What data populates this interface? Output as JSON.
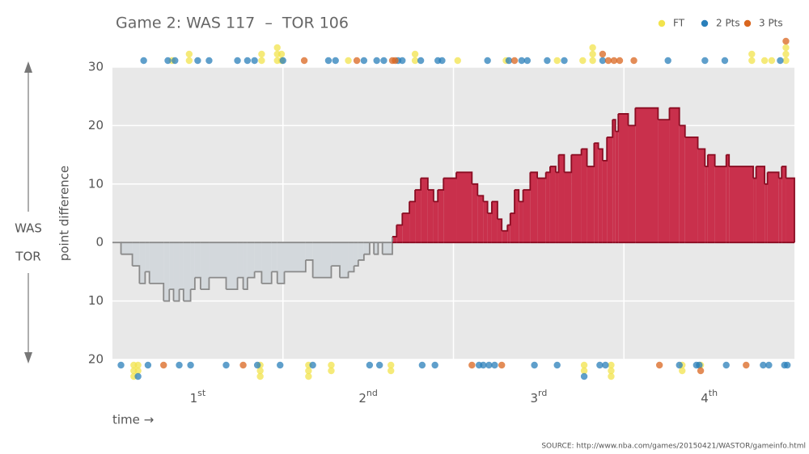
{
  "chart_data": {
    "type": "step-area",
    "title": "Game 2: WAS 117  –  TOR 106",
    "y_label": "point difference",
    "x_label": "time →",
    "top_team": "WAS",
    "bottom_team": "TOR",
    "source": "SOURCE: http://www.nba.com/games/20150421/WASTOR/gameinfo.html",
    "xlim": [
      0,
      48
    ],
    "quarter_lines": [
      12,
      24,
      36
    ],
    "quarters": [
      {
        "center": 6,
        "number": "1",
        "suffix": "st"
      },
      {
        "center": 18,
        "number": "2",
        "suffix": "nd"
      },
      {
        "center": 30,
        "number": "3",
        "suffix": "rd"
      },
      {
        "center": 42,
        "number": "4",
        "suffix": "th"
      }
    ],
    "ylim": [
      -20,
      30
    ],
    "yticks": [
      {
        "value": -20,
        "label": "20"
      },
      {
        "value": -10,
        "label": "10"
      },
      0,
      10,
      20,
      30
    ],
    "grid": true,
    "positive_color": "#c9304c",
    "positive_line": "#8a0c22",
    "negative_color": "#d3d8dc",
    "negative_line": "#8a8a8a",
    "x": [
      0,
      0.6,
      1.4,
      1.9,
      2.3,
      2.6,
      3.6,
      4.0,
      4.3,
      4.7,
      5.0,
      5.5,
      5.8,
      6.2,
      6.8,
      8.0,
      8.8,
      9.2,
      9.5,
      10.0,
      10.5,
      11.2,
      11.6,
      12.1,
      13.6,
      14.1,
      15.4,
      16.0,
      16.6,
      17.0,
      17.3,
      17.7,
      18.1,
      18.4,
      18.7,
      19.0,
      19.7,
      20.0,
      20.4,
      20.9,
      21.3,
      21.7,
      22.2,
      22.6,
      22.9,
      23.3,
      24.2,
      25.3,
      25.7,
      26.1,
      26.4,
      26.7,
      27.1,
      27.4,
      27.8,
      28.0,
      28.3,
      28.6,
      28.9,
      29.4,
      29.9,
      30.5,
      30.8,
      31.2,
      31.4,
      31.8,
      32.3,
      33.0,
      33.4,
      33.9,
      34.2,
      34.5,
      34.8,
      35.2,
      35.4,
      35.6,
      36.3,
      36.8,
      38.4,
      39.2,
      39.9,
      40.3,
      41.2,
      41.7,
      41.9,
      42.4,
      43.2,
      43.4,
      45.1,
      45.3,
      45.9,
      46.1,
      46.9,
      47.1,
      47.4,
      48
    ],
    "values": [
      0,
      -2,
      -4,
      -7,
      -5,
      -7,
      -10,
      -8,
      -10,
      -8,
      -10,
      -8,
      -6,
      -8,
      -6,
      -8,
      -6,
      -8,
      -6,
      -5,
      -7,
      -5,
      -7,
      -5,
      -3,
      -6,
      -4,
      -6,
      -5,
      -4,
      -3,
      -2,
      0,
      -2,
      0,
      -2,
      1,
      3,
      5,
      7,
      9,
      11,
      9,
      7,
      9,
      11,
      12,
      10,
      8,
      7,
      5,
      7,
      4,
      2,
      3,
      5,
      9,
      7,
      9,
      12,
      11,
      12,
      13,
      12,
      15,
      12,
      15,
      16,
      13,
      17,
      16,
      14,
      18,
      21,
      19,
      22,
      20,
      23,
      21,
      23,
      20,
      18,
      16,
      13,
      15,
      13,
      15,
      13,
      11,
      13,
      10,
      12,
      11,
      13,
      11,
      11
    ],
    "series": [
      {
        "name": "FT",
        "color": "#f2e34c",
        "top_x": [
          4.2,
          5.4,
          5.4,
          10.5,
          10.5,
          11.6,
          11.6,
          11.6,
          11.9,
          11.9,
          16.6,
          21.3,
          21.3,
          24.3,
          27.7,
          31.3,
          33.1,
          33.8,
          33.8,
          33.8,
          45.0,
          45.0,
          45.9,
          46.4,
          47.4,
          47.4,
          47.4
        ],
        "bottom_x": [
          1.5,
          1.5,
          1.5,
          1.8,
          1.8,
          10.4,
          10.4,
          10.4,
          13.8,
          13.8,
          13.8,
          15.4,
          15.4,
          19.6,
          19.6,
          33.2,
          33.2,
          35.1,
          35.1,
          35.1,
          40.1,
          40.1,
          41.4
        ]
      },
      {
        "name": "2 Pts",
        "color": "#2a7fba",
        "top_x": [
          2.2,
          3.9,
          4.4,
          6.0,
          6.8,
          8.8,
          9.5,
          10.0,
          12.0,
          15.2,
          15.7,
          17.7,
          18.6,
          19.1,
          20.1,
          20.4,
          21.7,
          22.9,
          23.2,
          26.4,
          27.9,
          28.8,
          29.2,
          30.6,
          31.8,
          34.5,
          39.1,
          41.7,
          43.1,
          47.0
        ],
        "bottom_x": [
          0.6,
          1.8,
          2.5,
          4.7,
          5.5,
          8.0,
          10.2,
          11.8,
          14.1,
          18.1,
          18.8,
          21.8,
          22.7,
          25.8,
          26.1,
          26.5,
          26.9,
          29.7,
          31.3,
          33.2,
          34.3,
          34.7,
          39.9,
          41.1,
          41.3,
          43.2,
          45.8,
          46.2,
          47.3,
          47.5
        ]
      },
      {
        "name": "3 Pts",
        "color": "#d9661f",
        "top_x": [
          13.5,
          17.2,
          19.7,
          19.9,
          28.3,
          34.5,
          34.9,
          35.3,
          35.7,
          36.7,
          47.4
        ],
        "bottom_x": [
          3.6,
          9.2,
          25.3,
          27.4,
          38.5,
          41.4,
          44.6
        ]
      }
    ]
  }
}
